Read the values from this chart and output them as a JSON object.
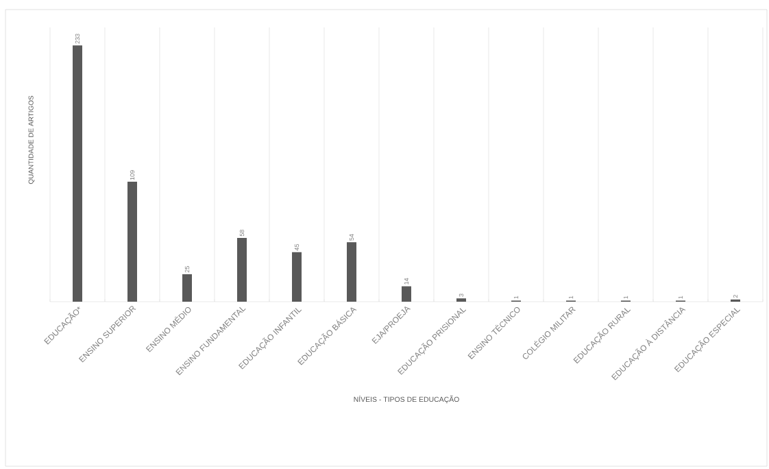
{
  "chart_data": {
    "type": "bar",
    "categories": [
      "EDUCAÇÃO*",
      "ENSINO SUPERIOR",
      "ENSINO MÉDIO",
      "ENSINO FUNDAMENTAL",
      "EDUCAÇÃO INFANTIL",
      "EDUCAÇÃO BÁSICA",
      "EJA/PROEJA",
      "EDUCAÇÃO PRISIONAL",
      "ENSINO TÉCNICO",
      "COLÉGIO MILITAR",
      "EDUCAÇÃO RURAL",
      "EDUCAÇÃO À DISTÂNCIA",
      "EDUCAÇÃO ESPECIAL"
    ],
    "values": [
      233,
      109,
      25,
      58,
      45,
      54,
      14,
      3,
      1,
      1,
      1,
      1,
      2
    ],
    "color": "#595959",
    "xlabel": "NÍVEIS - TIPOS DE EDUCAÇÃO",
    "ylabel": "QUANTIDADE DE ARTIGOS",
    "data_labels": true,
    "grid": "x",
    "tick_labels": "x"
  }
}
